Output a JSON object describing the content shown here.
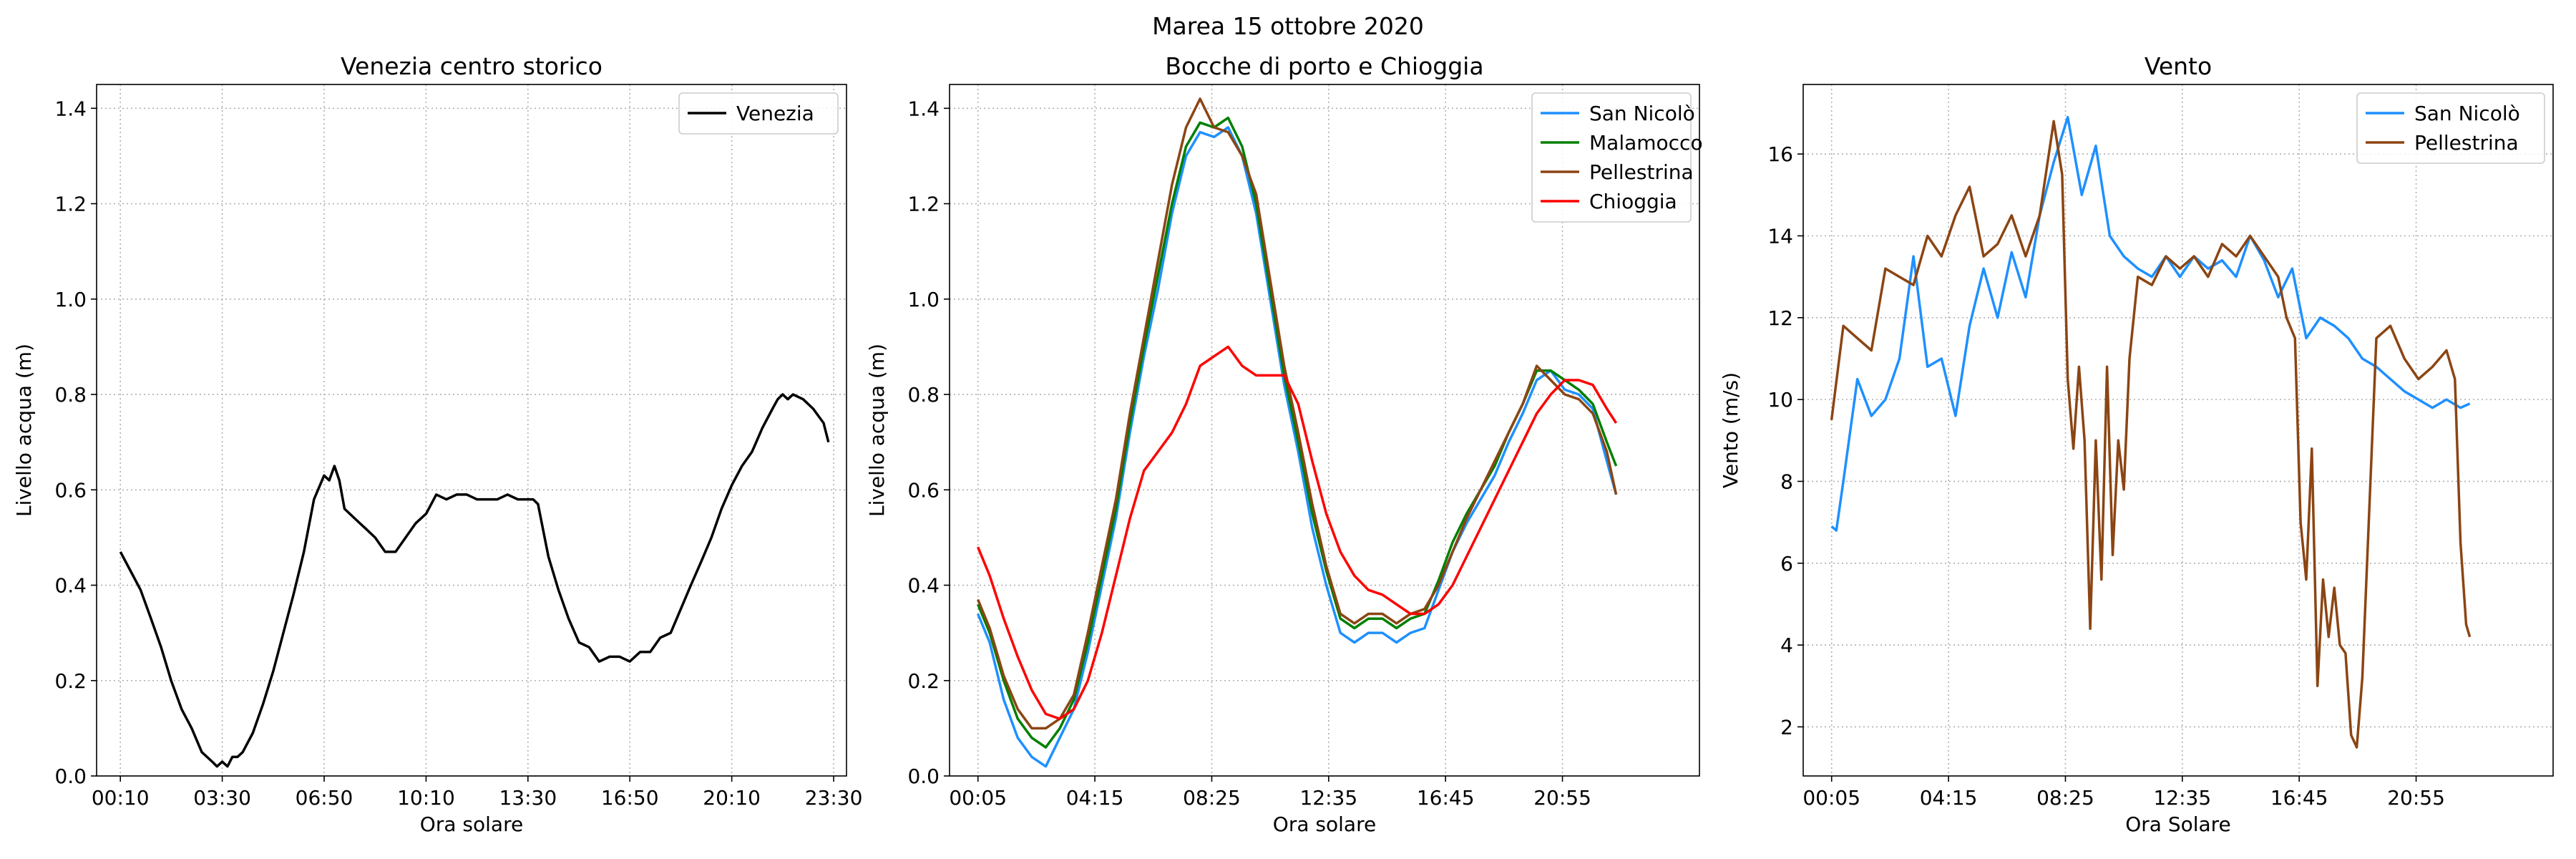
{
  "figure": {
    "title": "Marea 15 ottobre 2020"
  },
  "colors": {
    "venezia": "#000000",
    "san_nicolo": "#1e90ff",
    "malamocco": "#008000",
    "pellestrina": "#8b4513",
    "chioggia": "#ff0000",
    "grid": "#b0b0b0"
  },
  "chart_data": [
    {
      "type": "line",
      "title": "Venezia centro storico",
      "xlabel": "Ora solare",
      "ylabel": "Livello acqua (m)",
      "x_unit": "hours",
      "xlim": [
        -0.61,
        23.92
      ],
      "ylim": [
        0.0,
        1.45
      ],
      "xticks": [
        0.167,
        3.5,
        6.833,
        10.167,
        13.5,
        16.833,
        20.167,
        23.5
      ],
      "xtick_labels": [
        "00:10",
        "03:30",
        "06:50",
        "10:10",
        "13:30",
        "16:50",
        "20:10",
        "23:30"
      ],
      "yticks": [
        0.0,
        0.2,
        0.4,
        0.6,
        0.8,
        1.0,
        1.2,
        1.4
      ],
      "ytick_labels": [
        "0.0",
        "0.2",
        "0.4",
        "0.6",
        "0.8",
        "1.0",
        "1.2",
        "1.4"
      ],
      "grid": true,
      "legend": "top-right",
      "series": [
        {
          "name": "Venezia",
          "color": "#000000",
          "x": [
            0.17,
            0.5,
            0.83,
            1.17,
            1.5,
            1.83,
            2.17,
            2.5,
            2.83,
            3.17,
            3.33,
            3.5,
            3.67,
            3.83,
            4.0,
            4.17,
            4.5,
            4.83,
            5.17,
            5.5,
            5.83,
            6.17,
            6.5,
            6.83,
            7.0,
            7.17,
            7.33,
            7.5,
            7.67,
            8.0,
            8.17,
            8.5,
            8.83,
            9.17,
            9.5,
            9.83,
            10.17,
            10.5,
            10.83,
            11.17,
            11.5,
            11.83,
            12.17,
            12.5,
            12.83,
            13.17,
            13.5,
            13.67,
            13.83,
            14.17,
            14.5,
            14.83,
            15.17,
            15.5,
            15.83,
            16.17,
            16.5,
            16.83,
            17.17,
            17.5,
            17.83,
            18.17,
            18.5,
            18.83,
            19.17,
            19.5,
            19.83,
            20.17,
            20.5,
            20.83,
            21.17,
            21.5,
            21.67,
            21.83,
            22.0,
            22.17,
            22.5,
            22.83,
            23.17,
            23.33
          ],
          "y": [
            0.47,
            0.43,
            0.39,
            0.33,
            0.27,
            0.2,
            0.14,
            0.1,
            0.05,
            0.03,
            0.02,
            0.03,
            0.02,
            0.04,
            0.04,
            0.05,
            0.09,
            0.15,
            0.22,
            0.3,
            0.38,
            0.47,
            0.58,
            0.63,
            0.62,
            0.65,
            0.62,
            0.56,
            0.55,
            0.53,
            0.52,
            0.5,
            0.47,
            0.47,
            0.5,
            0.53,
            0.55,
            0.59,
            0.58,
            0.59,
            0.59,
            0.58,
            0.58,
            0.58,
            0.59,
            0.58,
            0.58,
            0.58,
            0.57,
            0.46,
            0.39,
            0.33,
            0.28,
            0.27,
            0.24,
            0.25,
            0.25,
            0.24,
            0.26,
            0.26,
            0.29,
            0.3,
            0.35,
            0.4,
            0.45,
            0.5,
            0.56,
            0.61,
            0.65,
            0.68,
            0.73,
            0.77,
            0.79,
            0.8,
            0.79,
            0.8,
            0.79,
            0.77,
            0.74,
            0.7
          ]
        }
      ]
    },
    {
      "type": "line",
      "title": "Bocche di porto e Chioggia",
      "xlabel": "Ora solare",
      "ylabel": "Livello acqua (m)",
      "x_unit": "hours",
      "xlim": [
        -0.93,
        25.8
      ],
      "ylim": [
        0.0,
        1.45
      ],
      "xticks": [
        0.083,
        4.25,
        8.417,
        12.583,
        16.75,
        20.917
      ],
      "xtick_labels": [
        "00:05",
        "04:15",
        "08:25",
        "12:35",
        "16:45",
        "20:55"
      ],
      "yticks": [
        0.0,
        0.2,
        0.4,
        0.6,
        0.8,
        1.0,
        1.2,
        1.4
      ],
      "ytick_labels": [
        "0.0",
        "0.2",
        "0.4",
        "0.6",
        "0.8",
        "1.0",
        "1.2",
        "1.4"
      ],
      "grid": true,
      "legend": "top-right",
      "series": [
        {
          "name": "San Nicolò",
          "color": "#1e90ff",
          "x": [
            0.08,
            0.5,
            1.0,
            1.5,
            2.0,
            2.5,
            3.0,
            3.5,
            4.0,
            4.5,
            5.0,
            5.5,
            6.0,
            6.5,
            7.0,
            7.5,
            8.0,
            8.5,
            9.0,
            9.5,
            10.0,
            10.5,
            11.0,
            11.5,
            12.0,
            12.5,
            13.0,
            13.5,
            14.0,
            14.5,
            15.0,
            15.5,
            16.0,
            16.5,
            17.0,
            17.5,
            18.0,
            18.5,
            19.0,
            19.5,
            20.0,
            20.5,
            21.0,
            21.5,
            22.0,
            22.5,
            22.83
          ],
          "y": [
            0.34,
            0.28,
            0.16,
            0.08,
            0.04,
            0.02,
            0.08,
            0.14,
            0.26,
            0.4,
            0.54,
            0.72,
            0.88,
            1.02,
            1.18,
            1.3,
            1.35,
            1.34,
            1.36,
            1.3,
            1.18,
            1.0,
            0.82,
            0.68,
            0.52,
            0.4,
            0.3,
            0.28,
            0.3,
            0.3,
            0.28,
            0.3,
            0.31,
            0.39,
            0.47,
            0.53,
            0.58,
            0.63,
            0.7,
            0.76,
            0.83,
            0.85,
            0.81,
            0.8,
            0.77,
            0.66,
            0.59
          ]
        },
        {
          "name": "Malamocco",
          "color": "#008000",
          "x": [
            0.08,
            0.5,
            1.0,
            1.5,
            2.0,
            2.5,
            3.0,
            3.5,
            4.0,
            4.5,
            5.0,
            5.5,
            6.0,
            6.5,
            7.0,
            7.5,
            8.0,
            8.5,
            9.0,
            9.5,
            10.0,
            10.5,
            11.0,
            11.5,
            12.0,
            12.5,
            13.0,
            13.5,
            14.0,
            14.5,
            15.0,
            15.5,
            16.0,
            16.5,
            17.0,
            17.5,
            18.0,
            18.5,
            19.0,
            19.5,
            20.0,
            20.5,
            21.0,
            21.5,
            22.0,
            22.5,
            22.83
          ],
          "y": [
            0.36,
            0.3,
            0.2,
            0.12,
            0.08,
            0.06,
            0.1,
            0.16,
            0.28,
            0.42,
            0.56,
            0.74,
            0.9,
            1.05,
            1.2,
            1.32,
            1.37,
            1.36,
            1.38,
            1.32,
            1.2,
            1.02,
            0.84,
            0.7,
            0.55,
            0.43,
            0.33,
            0.31,
            0.33,
            0.33,
            0.31,
            0.33,
            0.34,
            0.41,
            0.49,
            0.55,
            0.6,
            0.65,
            0.72,
            0.78,
            0.85,
            0.85,
            0.83,
            0.81,
            0.78,
            0.7,
            0.65
          ]
        },
        {
          "name": "Pellestrina",
          "color": "#8b4513",
          "x": [
            0.08,
            0.5,
            1.0,
            1.5,
            2.0,
            2.5,
            3.0,
            3.5,
            4.0,
            4.5,
            5.0,
            5.5,
            6.0,
            6.5,
            7.0,
            7.5,
            8.0,
            8.5,
            9.0,
            9.5,
            10.0,
            10.5,
            11.0,
            11.5,
            12.0,
            12.5,
            13.0,
            13.5,
            14.0,
            14.5,
            15.0,
            15.5,
            16.0,
            16.5,
            17.0,
            17.5,
            18.0,
            18.5,
            19.0,
            19.5,
            20.0,
            20.5,
            21.0,
            21.5,
            22.0,
            22.5,
            22.83
          ],
          "y": [
            0.37,
            0.31,
            0.21,
            0.14,
            0.1,
            0.1,
            0.12,
            0.17,
            0.3,
            0.44,
            0.58,
            0.76,
            0.92,
            1.08,
            1.24,
            1.36,
            1.42,
            1.36,
            1.35,
            1.3,
            1.22,
            1.04,
            0.86,
            0.72,
            0.57,
            0.44,
            0.34,
            0.32,
            0.34,
            0.34,
            0.32,
            0.34,
            0.35,
            0.4,
            0.47,
            0.54,
            0.6,
            0.66,
            0.72,
            0.78,
            0.86,
            0.83,
            0.8,
            0.79,
            0.76,
            0.68,
            0.59
          ]
        },
        {
          "name": "Chioggia",
          "color": "#ff0000",
          "x": [
            0.08,
            0.5,
            1.0,
            1.5,
            2.0,
            2.5,
            3.0,
            3.5,
            4.0,
            4.5,
            5.0,
            5.5,
            6.0,
            6.5,
            7.0,
            7.5,
            8.0,
            8.5,
            9.0,
            9.5,
            10.0,
            10.5,
            11.0,
            11.5,
            12.0,
            12.5,
            13.0,
            13.5,
            14.0,
            14.5,
            15.0,
            15.5,
            16.0,
            16.5,
            17.0,
            17.5,
            18.0,
            18.5,
            19.0,
            19.5,
            20.0,
            20.5,
            21.0,
            21.5,
            22.0,
            22.5,
            22.83
          ],
          "y": [
            0.48,
            0.42,
            0.33,
            0.25,
            0.18,
            0.13,
            0.12,
            0.14,
            0.2,
            0.3,
            0.42,
            0.54,
            0.64,
            0.68,
            0.72,
            0.78,
            0.86,
            0.88,
            0.9,
            0.86,
            0.84,
            0.84,
            0.84,
            0.78,
            0.66,
            0.55,
            0.47,
            0.42,
            0.39,
            0.38,
            0.36,
            0.34,
            0.34,
            0.36,
            0.4,
            0.46,
            0.52,
            0.58,
            0.64,
            0.7,
            0.76,
            0.8,
            0.83,
            0.83,
            0.82,
            0.77,
            0.74
          ]
        }
      ]
    },
    {
      "type": "line",
      "title": "Vento",
      "xlabel": "Ora Solare",
      "ylabel": "Vento (m/s)",
      "x_unit": "hours",
      "xlim": [
        -0.93,
        25.8
      ],
      "ylim": [
        0.8,
        17.7
      ],
      "xticks": [
        0.083,
        4.25,
        8.417,
        12.583,
        16.75,
        20.917
      ],
      "xtick_labels": [
        "00:05",
        "04:15",
        "08:25",
        "12:35",
        "16:45",
        "20:55"
      ],
      "yticks": [
        2,
        4,
        6,
        8,
        10,
        12,
        14,
        16
      ],
      "ytick_labels": [
        "2",
        "4",
        "6",
        "8",
        "10",
        "12",
        "14",
        "16"
      ],
      "grid": true,
      "legend": "top-right",
      "series": [
        {
          "name": "San Nicolò",
          "color": "#1e90ff",
          "x": [
            0.08,
            0.25,
            0.5,
            1.0,
            1.5,
            2.0,
            2.5,
            3.0,
            3.5,
            4.0,
            4.5,
            5.0,
            5.5,
            6.0,
            6.5,
            7.0,
            7.5,
            8.0,
            8.5,
            9.0,
            9.5,
            10.0,
            10.5,
            11.0,
            11.5,
            12.0,
            12.5,
            13.0,
            13.5,
            14.0,
            14.5,
            15.0,
            15.5,
            16.0,
            16.5,
            17.0,
            17.5,
            18.0,
            18.5,
            19.0,
            19.5,
            20.0,
            20.5,
            21.0,
            21.5,
            22.0,
            22.5,
            22.83
          ],
          "y": [
            6.9,
            6.8,
            8.0,
            10.5,
            9.6,
            10.0,
            11.0,
            13.5,
            10.8,
            11.0,
            9.6,
            11.8,
            13.2,
            12.0,
            13.6,
            12.5,
            14.5,
            15.8,
            16.9,
            15.0,
            16.2,
            14.0,
            13.5,
            13.2,
            13.0,
            13.5,
            13.0,
            13.5,
            13.2,
            13.4,
            13.0,
            14.0,
            13.4,
            12.5,
            13.2,
            11.5,
            12.0,
            11.8,
            11.5,
            11.0,
            10.8,
            10.5,
            10.2,
            10.0,
            9.8,
            10.0,
            9.8,
            9.9
          ]
        },
        {
          "name": "Pellestrina",
          "color": "#8b4513",
          "x": [
            0.08,
            0.5,
            1.0,
            1.5,
            2.0,
            2.5,
            3.0,
            3.5,
            4.0,
            4.5,
            5.0,
            5.5,
            6.0,
            6.5,
            7.0,
            7.5,
            8.0,
            8.3,
            8.5,
            8.7,
            8.9,
            9.1,
            9.3,
            9.5,
            9.7,
            9.9,
            10.1,
            10.3,
            10.5,
            10.7,
            11.0,
            11.5,
            12.0,
            12.5,
            13.0,
            13.5,
            14.0,
            14.5,
            15.0,
            15.5,
            16.0,
            16.3,
            16.6,
            16.8,
            17.0,
            17.2,
            17.4,
            17.6,
            17.8,
            18.0,
            18.2,
            18.4,
            18.6,
            18.8,
            19.0,
            19.5,
            20.0,
            20.5,
            21.0,
            21.5,
            22.0,
            22.3,
            22.5,
            22.7,
            22.83
          ],
          "y": [
            9.5,
            11.8,
            11.5,
            11.2,
            13.2,
            13.0,
            12.8,
            14.0,
            13.5,
            14.5,
            15.2,
            13.5,
            13.8,
            14.5,
            13.5,
            14.5,
            16.8,
            15.5,
            10.5,
            8.8,
            10.8,
            9.0,
            4.4,
            9.0,
            5.6,
            10.8,
            6.2,
            9.0,
            7.8,
            11.0,
            13.0,
            12.8,
            13.5,
            13.2,
            13.5,
            13.0,
            13.8,
            13.5,
            14.0,
            13.5,
            13.0,
            12.0,
            11.5,
            7.0,
            5.6,
            8.8,
            3.0,
            5.6,
            4.2,
            5.4,
            4.0,
            3.8,
            1.8,
            1.5,
            3.2,
            11.5,
            11.8,
            11.0,
            10.5,
            10.8,
            11.2,
            10.5,
            6.5,
            4.5,
            4.2
          ]
        }
      ]
    }
  ]
}
